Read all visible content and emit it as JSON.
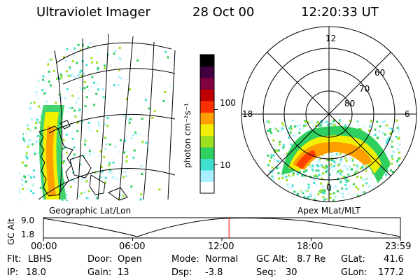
{
  "header": {
    "title": "Ultraviolet Imager",
    "date": "28 Oct 00",
    "time": "12:20:33 UT"
  },
  "left_panel": {
    "caption": "Geographic Lat/Lon"
  },
  "right_panel": {
    "caption": "Apex MLat/MLT",
    "mlt_labels": {
      "top": "12",
      "left": "18",
      "right": "6",
      "bottom": "0"
    },
    "lat_labels": [
      "60",
      "70",
      "80"
    ]
  },
  "colorbar": {
    "unit_label": "photon cm⁻²s⁻¹",
    "ticks": [
      {
        "value": 100,
        "label": "100"
      },
      {
        "value": 10,
        "label": "10"
      }
    ],
    "scale": "log",
    "range": [
      3,
      1000
    ],
    "colors_bottom_to_top": [
      "#ffffff",
      "#a8f0ff",
      "#40e0d0",
      "#30d060",
      "#9ce020",
      "#f0f000",
      "#ffa000",
      "#ff3000",
      "#c00000",
      "#800040",
      "#400040",
      "#000000"
    ]
  },
  "orbit_plot": {
    "ylabel": "GC Alt",
    "yticks": [
      "9.0",
      "1.8"
    ],
    "xticks": [
      "00:00",
      "06:00",
      "12:00",
      "18:00",
      "23:59"
    ],
    "current_time_fraction": 0.52,
    "current_marker_color": "#ff0000"
  },
  "status": {
    "filter": {
      "label": "Flt:",
      "value": "LBHS"
    },
    "ip": {
      "label": "IP:",
      "value": "18.0"
    },
    "door": {
      "label": "Door:",
      "value": "Open"
    },
    "gain": {
      "label": "Gain:",
      "value": "13"
    },
    "mode": {
      "label": "Mode:",
      "value": "Normal"
    },
    "dsp": {
      "label": "Dsp:",
      "value": "-3.8"
    },
    "gc_alt": {
      "label": "GC Alt:",
      "value": "8.7 Re"
    },
    "seq": {
      "label": "Seq:",
      "value": "30"
    },
    "glat": {
      "label": "GLat:",
      "value": "41.6"
    },
    "glon": {
      "label": "GLon:",
      "value": "177.2"
    }
  }
}
